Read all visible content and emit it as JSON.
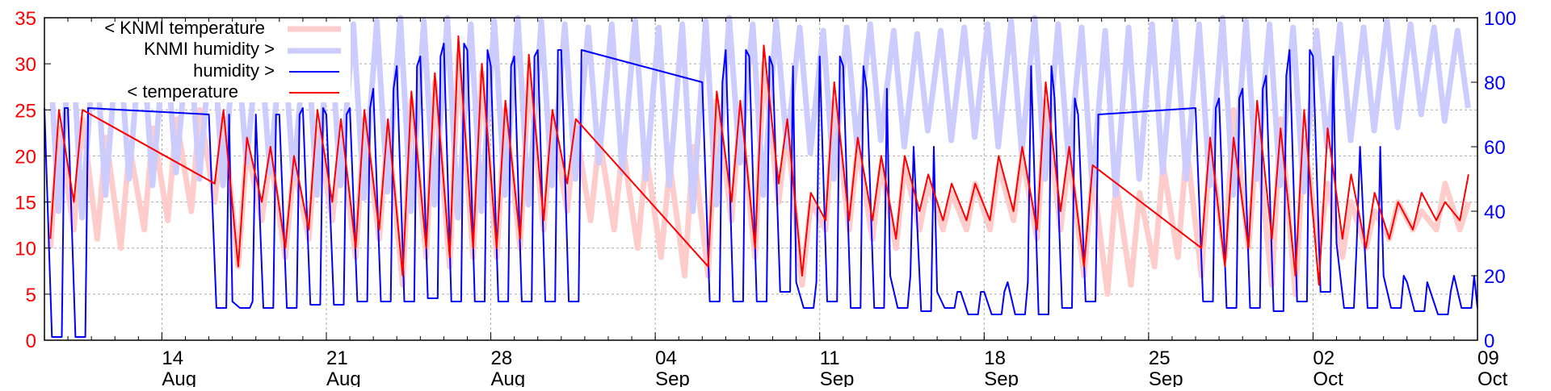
{
  "chart_data": {
    "type": "line",
    "title": "",
    "x_unit": "days since 09 Aug",
    "xlim": [
      0,
      61
    ],
    "ylim_left": [
      0,
      35
    ],
    "ylim_right": [
      0,
      100
    ],
    "grid": true,
    "legend_position": "top-left",
    "left_ticks": [
      "0",
      "5",
      "10",
      "15",
      "20",
      "25",
      "30",
      "35"
    ],
    "right_ticks": [
      "0",
      "20",
      "40",
      "60",
      "80",
      "100"
    ],
    "x_ticks": [
      {
        "day": 5,
        "top": "14",
        "bottom": "Aug"
      },
      {
        "day": 12,
        "top": "21",
        "bottom": "Aug"
      },
      {
        "day": 19,
        "top": "28",
        "bottom": "Aug"
      },
      {
        "day": 26,
        "top": "04",
        "bottom": "Sep"
      },
      {
        "day": 33,
        "top": "11",
        "bottom": "Sep"
      },
      {
        "day": 40,
        "top": "18",
        "bottom": "Sep"
      },
      {
        "day": 47,
        "top": "25",
        "bottom": "Sep"
      },
      {
        "day": 54,
        "top": "02",
        "bottom": "Oct"
      },
      {
        "day": 61,
        "top": "09",
        "bottom": "Oct"
      }
    ],
    "colors": {
      "left_axis": "#ff0000",
      "right_axis": "#0000ff"
    },
    "series": [
      {
        "name": "< KNMI temperature",
        "axis": "left",
        "color": "#ffcccc",
        "width": 7,
        "kind": "temp",
        "daily_max": [
          23,
          24,
          22,
          21,
          23,
          24,
          25,
          24,
          21,
          20,
          19,
          23,
          22,
          24,
          23,
          26,
          28,
          31,
          29,
          25,
          29,
          24,
          23,
          22,
          21,
          20,
          19,
          21,
          26,
          25,
          30,
          23,
          15,
          26,
          21,
          19,
          19,
          17,
          16,
          17,
          19,
          20,
          26,
          20,
          18,
          17,
          16,
          19,
          21,
          21,
          25,
          22,
          24,
          22,
          17,
          15,
          14,
          15,
          14,
          17,
          15,
          14
        ],
        "daily_min": [
          10,
          12,
          11,
          10,
          12,
          13,
          14,
          15,
          8,
          13,
          9,
          11,
          13,
          9,
          11,
          6,
          9,
          8,
          9,
          9,
          10,
          12,
          14,
          13,
          12,
          10,
          9,
          7,
          7,
          13,
          9,
          15,
          6,
          12,
          12,
          11,
          10,
          12,
          12,
          12,
          12,
          13,
          11,
          12,
          7,
          5,
          6,
          8,
          9,
          7,
          9,
          10,
          6,
          5,
          10,
          9,
          10,
          11,
          12,
          12,
          12,
          12
        ]
      },
      {
        "name": "KNMI humidity >",
        "axis": "right",
        "color": "#ccccff",
        "width": 7,
        "kind": "hum_knmi",
        "daily_max": [
          100,
          98,
          95,
          96,
          97,
          95,
          96,
          98,
          97,
          96,
          97,
          98,
          99,
          98,
          99,
          100,
          99,
          100,
          98,
          99,
          100,
          99,
          98,
          97,
          98,
          99,
          97,
          98,
          99,
          100,
          98,
          99,
          97,
          96,
          97,
          98,
          96,
          95,
          96,
          97,
          98,
          99,
          100,
          98,
          97,
          96,
          97,
          98,
          99,
          98,
          100,
          99,
          98,
          97,
          96,
          98,
          97,
          99,
          98,
          97,
          96,
          95
        ],
        "daily_min": [
          40,
          38,
          45,
          50,
          48,
          52,
          50,
          48,
          55,
          52,
          50,
          45,
          48,
          44,
          46,
          40,
          42,
          38,
          40,
          45,
          42,
          48,
          50,
          55,
          52,
          50,
          48,
          40,
          42,
          55,
          45,
          60,
          58,
          50,
          60,
          62,
          60,
          65,
          62,
          63,
          60,
          58,
          50,
          55,
          48,
          45,
          50,
          52,
          50,
          48,
          45,
          50,
          48,
          46,
          60,
          62,
          65,
          66,
          70,
          68,
          72,
          75
        ]
      },
      {
        "name": "humidity >",
        "axis": "right",
        "color": "#0000ff",
        "width": 2,
        "kind": "hum",
        "daily_max": [
          72,
          72,
          null,
          null,
          null,
          null,
          null,
          70,
          12,
          70,
          70,
          72,
          70,
          72,
          78,
          85,
          88,
          92,
          90,
          85,
          88,
          90,
          90,
          null,
          null,
          null,
          null,
          null,
          80,
          90,
          88,
          85,
          18,
          88,
          85,
          78,
          20,
          60,
          15,
          15,
          15,
          18,
          85,
          75,
          70,
          null,
          null,
          null,
          null,
          72,
          75,
          78,
          82,
          90,
          88,
          30,
          60,
          20,
          18,
          15,
          20,
          10
        ],
        "daily_min": [
          1,
          1,
          null,
          null,
          null,
          null,
          null,
          10,
          10,
          10,
          10,
          11,
          11,
          12,
          12,
          12,
          13,
          12,
          12,
          12,
          12,
          12,
          12,
          null,
          null,
          null,
          null,
          null,
          12,
          12,
          12,
          15,
          10,
          12,
          10,
          10,
          10,
          9,
          10,
          8,
          8,
          8,
          8,
          10,
          12,
          null,
          null,
          null,
          null,
          12,
          10,
          10,
          9,
          12,
          15,
          10,
          10,
          10,
          9,
          8,
          10,
          9
        ]
      },
      {
        "name": "< temperature",
        "axis": "left",
        "color": "#ff0000",
        "width": 2,
        "kind": "temp",
        "daily_max": [
          25,
          25,
          null,
          null,
          null,
          null,
          null,
          25,
          22,
          21,
          20,
          25,
          24,
          25,
          24,
          27,
          29,
          33,
          30,
          26,
          31,
          25,
          24,
          null,
          null,
          null,
          null,
          null,
          27,
          26,
          32,
          24,
          16,
          28,
          22,
          20,
          20,
          18,
          17,
          17,
          20,
          21,
          28,
          21,
          19,
          null,
          null,
          null,
          null,
          22,
          22,
          26,
          23,
          25,
          23,
          18,
          16,
          15,
          16,
          15,
          18,
          15
        ],
        "daily_min": [
          11,
          15,
          null,
          null,
          null,
          null,
          null,
          17,
          8,
          15,
          10,
          12,
          15,
          10,
          12,
          7,
          10,
          9,
          10,
          10,
          11,
          13,
          17,
          null,
          null,
          null,
          null,
          null,
          8,
          15,
          10,
          17,
          7,
          13,
          13,
          13,
          11,
          14,
          13,
          13,
          13,
          14,
          12,
          14,
          8,
          null,
          null,
          null,
          null,
          10,
          8,
          10,
          11,
          7,
          6,
          11,
          10,
          11,
          12,
          13,
          13,
          13
        ]
      }
    ]
  }
}
